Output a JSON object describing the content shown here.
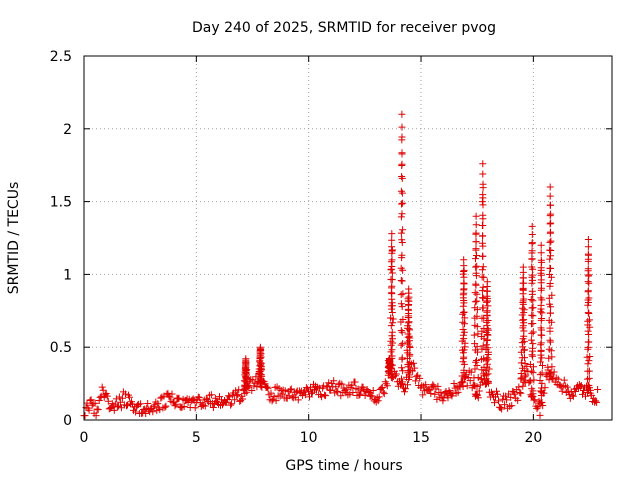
{
  "chart_data": {
    "type": "scatter",
    "title": "Day 240 of 2025, SRMTID for receiver pvog",
    "xlabel": "GPS time / hours",
    "ylabel": "SRMTID / TECUs",
    "xlim": [
      0,
      23.5
    ],
    "ylim": [
      0,
      2.5
    ],
    "xticks": [
      0,
      5,
      10,
      15,
      20
    ],
    "xtick_labels": [
      "0",
      "5",
      "10",
      "15",
      "20"
    ],
    "yticks": [
      0,
      0.5,
      1,
      1.5,
      2,
      2.5
    ],
    "ytick_labels": [
      "0",
      "0.5",
      "1",
      "1.5",
      "2",
      "2.5"
    ],
    "grid": true,
    "marker": "+",
    "series": [
      {
        "name": "SRMTID",
        "color": "#e00000",
        "baseline": [
          [
            0.0,
            0.06
          ],
          [
            0.3,
            0.09
          ],
          [
            0.6,
            0.07
          ],
          [
            0.8,
            0.19
          ],
          [
            1.0,
            0.13
          ],
          [
            1.4,
            0.1
          ],
          [
            1.8,
            0.15
          ],
          [
            2.2,
            0.1
          ],
          [
            2.6,
            0.07
          ],
          [
            3.0,
            0.09
          ],
          [
            3.4,
            0.11
          ],
          [
            3.8,
            0.14
          ],
          [
            4.2,
            0.12
          ],
          [
            4.6,
            0.12
          ],
          [
            5.0,
            0.11
          ],
          [
            5.4,
            0.12
          ],
          [
            5.8,
            0.13
          ],
          [
            6.2,
            0.12
          ],
          [
            6.6,
            0.14
          ],
          [
            7.0,
            0.18
          ],
          [
            7.4,
            0.24
          ],
          [
            7.8,
            0.28
          ],
          [
            8.2,
            0.17
          ],
          [
            8.6,
            0.18
          ],
          [
            9.0,
            0.17
          ],
          [
            9.4,
            0.18
          ],
          [
            9.8,
            0.19
          ],
          [
            10.2,
            0.2
          ],
          [
            10.6,
            0.21
          ],
          [
            11.0,
            0.23
          ],
          [
            11.4,
            0.21
          ],
          [
            11.8,
            0.22
          ],
          [
            12.2,
            0.21
          ],
          [
            12.6,
            0.18
          ],
          [
            13.0,
            0.17
          ],
          [
            13.4,
            0.22
          ],
          [
            13.6,
            0.35
          ],
          [
            14.0,
            0.28
          ],
          [
            14.3,
            0.22
          ],
          [
            14.6,
            0.4
          ],
          [
            14.9,
            0.24
          ],
          [
            15.2,
            0.21
          ],
          [
            15.6,
            0.19
          ],
          [
            16.0,
            0.17
          ],
          [
            16.4,
            0.19
          ],
          [
            16.8,
            0.25
          ],
          [
            17.2,
            0.3
          ],
          [
            17.5,
            0.15
          ],
          [
            17.8,
            0.3
          ],
          [
            18.1,
            0.2
          ],
          [
            18.5,
            0.12
          ],
          [
            18.9,
            0.13
          ],
          [
            19.3,
            0.17
          ],
          [
            19.7,
            0.35
          ],
          [
            20.0,
            0.12
          ],
          [
            20.3,
            0.08
          ],
          [
            20.6,
            0.3
          ],
          [
            21.0,
            0.3
          ],
          [
            21.4,
            0.22
          ],
          [
            21.8,
            0.18
          ],
          [
            22.1,
            0.22
          ],
          [
            22.5,
            0.18
          ],
          [
            22.9,
            0.16
          ]
        ],
        "spread": 0.05,
        "peaks": [
          {
            "center": 13.7,
            "peak": 1.28,
            "width": 0.12
          },
          {
            "center": 14.15,
            "peak": 2.1,
            "width": 0.08
          },
          {
            "center": 14.45,
            "peak": 0.9,
            "width": 0.1
          },
          {
            "center": 16.9,
            "peak": 1.1,
            "width": 0.1
          },
          {
            "center": 17.45,
            "peak": 1.4,
            "width": 0.12
          },
          {
            "center": 17.75,
            "peak": 1.76,
            "width": 0.07
          },
          {
            "center": 17.95,
            "peak": 0.95,
            "width": 0.1
          },
          {
            "center": 19.55,
            "peak": 1.05,
            "width": 0.12
          },
          {
            "center": 19.95,
            "peak": 1.33,
            "width": 0.1
          },
          {
            "center": 20.75,
            "peak": 1.6,
            "width": 0.13
          },
          {
            "center": 20.35,
            "peak": 1.2,
            "width": 0.08
          },
          {
            "center": 22.45,
            "peak": 1.24,
            "width": 0.1
          },
          {
            "center": 7.2,
            "peak": 0.42,
            "width": 0.07
          },
          {
            "center": 7.85,
            "peak": 0.5,
            "width": 0.08
          },
          {
            "center": 13.6,
            "peak": 0.42,
            "width": 0.1
          }
        ]
      }
    ]
  }
}
